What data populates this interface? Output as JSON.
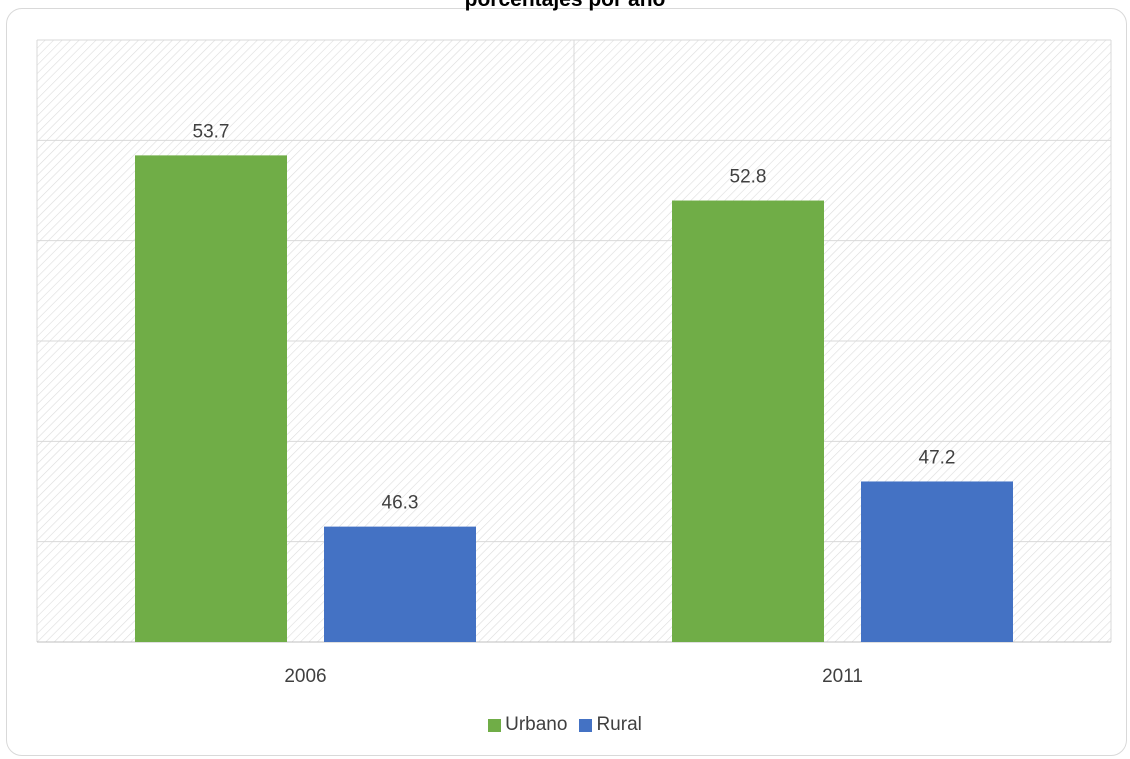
{
  "chart_data": {
    "type": "bar",
    "title": "porcentajes por año",
    "categories": [
      "2006",
      "2011"
    ],
    "series": [
      {
        "name": "Urbano",
        "values": [
          53.7,
          52.8
        ],
        "color": "#70ad47"
      },
      {
        "name": "Rural",
        "values": [
          46.3,
          47.2
        ],
        "color": "#4472c4"
      }
    ],
    "ylim": [
      44,
      56
    ],
    "grid": true,
    "legend_position": "bottom",
    "background": "hatched"
  }
}
